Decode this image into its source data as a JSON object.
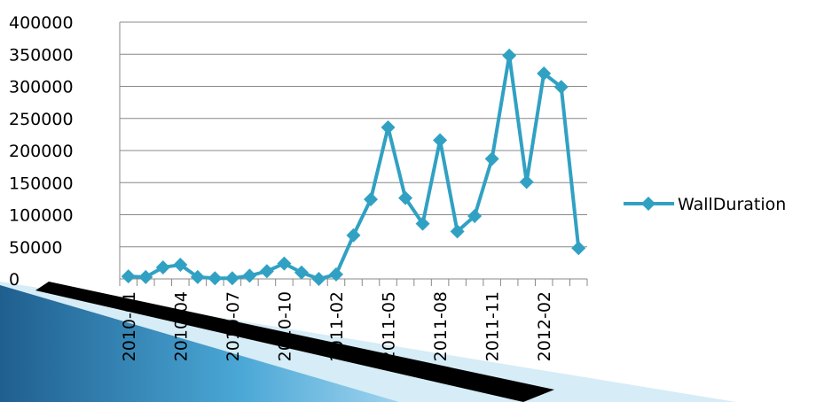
{
  "chart_data": {
    "type": "line",
    "categories": [
      "2010-01",
      null,
      null,
      "2010-04",
      null,
      null,
      "2010-07",
      null,
      null,
      "2010-10",
      null,
      null,
      "2011-02",
      null,
      null,
      "2011-05",
      null,
      null,
      "2011-08",
      null,
      null,
      "2011-11",
      null,
      null,
      "2012-02",
      null,
      null
    ],
    "series": [
      {
        "name": "WallDuration",
        "color": "#31a1c3",
        "values": [
          4000,
          3000,
          18000,
          22000,
          3000,
          1000,
          1000,
          5000,
          12000,
          24000,
          10000,
          0,
          7000,
          68000,
          124000,
          236000,
          126000,
          86000,
          216000,
          74000,
          98000,
          187000,
          348000,
          151000,
          320000,
          299000,
          48000
        ]
      }
    ],
    "ylim": [
      0,
      400000
    ],
    "yticks": [
      0,
      50000,
      100000,
      150000,
      200000,
      250000,
      300000,
      350000,
      400000
    ],
    "grid": true,
    "legend": "right"
  }
}
